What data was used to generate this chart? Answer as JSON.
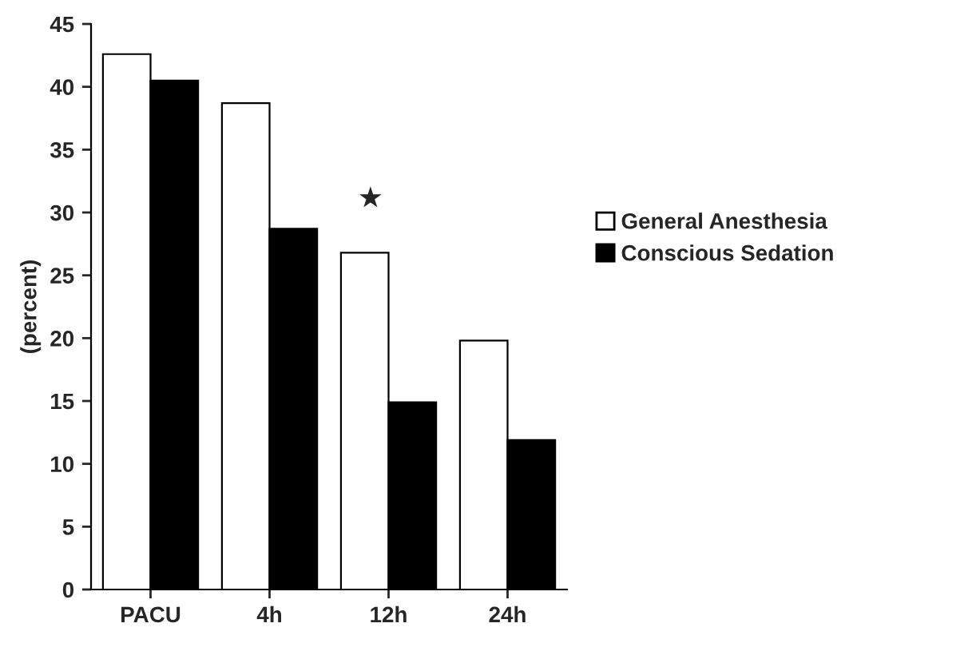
{
  "chart_data": {
    "type": "bar",
    "ylabel": "(percent)",
    "categories": [
      "PACU",
      "4h",
      "12h",
      "24h"
    ],
    "series": [
      {
        "name": "General Anesthesia",
        "color": "#ffffff",
        "values": [
          42.6,
          38.7,
          26.8,
          19.8
        ]
      },
      {
        "name": "Conscious Sedation",
        "color": "#000000",
        "values": [
          40.5,
          28.7,
          14.9,
          11.9
        ]
      }
    ],
    "ylim": [
      0,
      45
    ],
    "yticks": [
      0,
      5,
      10,
      15,
      20,
      25,
      30,
      35,
      40,
      45
    ],
    "annotations": [
      "★"
    ],
    "legend": "right",
    "grid": false
  }
}
